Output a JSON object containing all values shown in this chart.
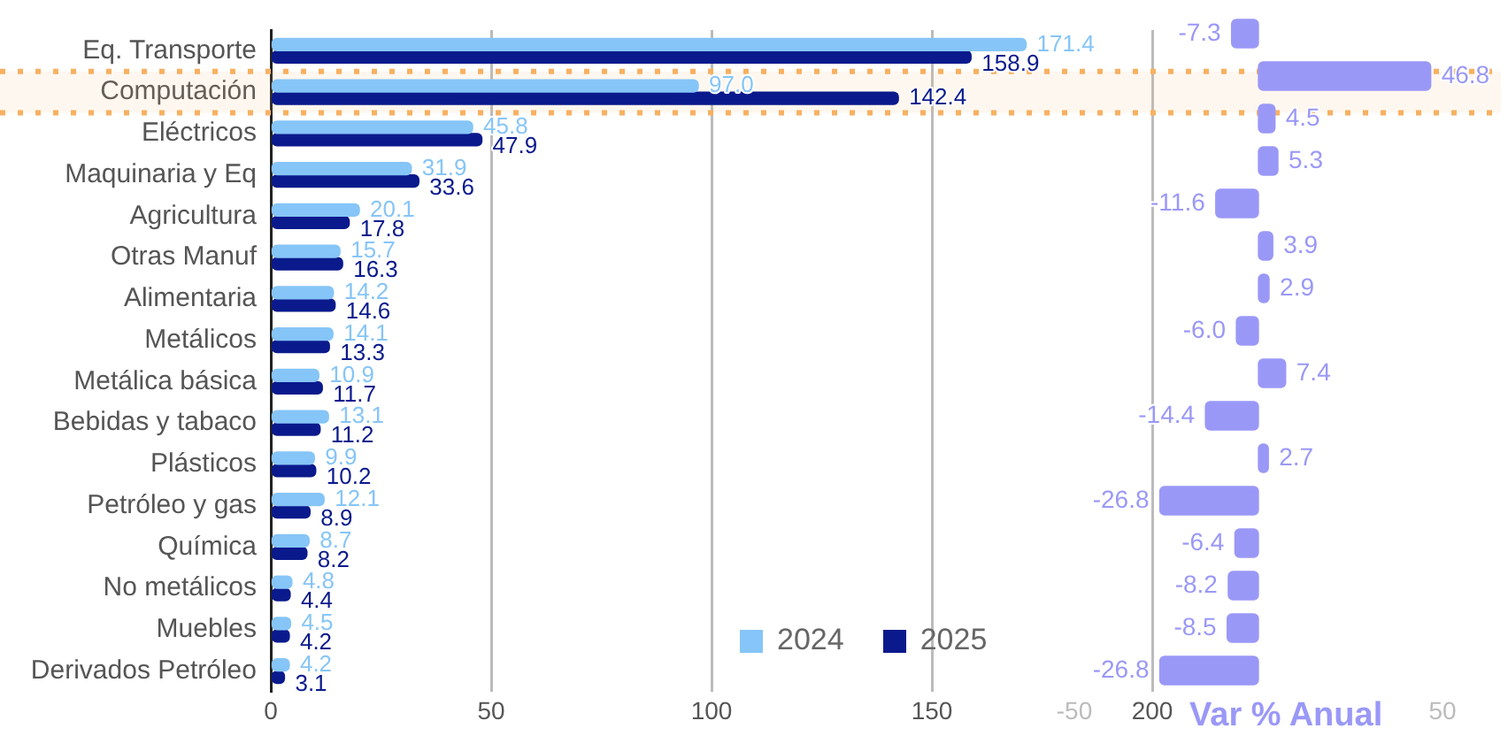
{
  "chart_data": [
    {
      "type": "bar",
      "orientation": "horizontal",
      "categories": [
        "Eq. Transporte",
        "Computación",
        "Eléctricos",
        "Maquinaria y Eq",
        "Agricultura",
        "Otras Manuf",
        "Alimentaria",
        "Metálicos",
        "Metálica básica",
        "Bebidas y tabaco",
        "Plásticos",
        "Petróleo y gas",
        "Química",
        "No metálicos",
        "Muebles",
        "Derivados Petróleo"
      ],
      "series": [
        {
          "name": "2024",
          "color": "#86c5f7",
          "values": [
            171.4,
            97.0,
            45.8,
            31.9,
            20.1,
            15.7,
            14.2,
            14.1,
            10.9,
            13.1,
            9.9,
            12.1,
            8.7,
            4.8,
            4.5,
            4.2
          ],
          "value_labels": [
            "171.4",
            "97.0",
            "45.8",
            "31.9",
            "20.1",
            "15.7",
            "14.2",
            "14.1",
            "10.9",
            "13.1",
            "9.9",
            "12.1",
            "8.7",
            "4.8",
            "4.5",
            "4.2"
          ]
        },
        {
          "name": "2025",
          "color": "#0a1a8c",
          "values": [
            158.9,
            142.4,
            47.9,
            33.6,
            17.8,
            16.3,
            14.6,
            13.3,
            11.7,
            11.2,
            10.2,
            8.9,
            8.2,
            4.4,
            4.2,
            3.1
          ],
          "value_labels": [
            "158.9",
            "142.4",
            "47.9",
            "33.6",
            "17.8",
            "16.3",
            "14.6",
            "13.3",
            "11.7",
            "11.2",
            "10.2",
            "8.9",
            "8.2",
            "4.4",
            "4.2",
            "3.1"
          ]
        }
      ],
      "bands": [
        {
          "axis": "y",
          "from": "Computación",
          "to": "Computación",
          "color": "#f8b060"
        }
      ],
      "xlim": [
        0,
        200
      ],
      "xticks": [
        0,
        50,
        100,
        150,
        200
      ],
      "grid": "x",
      "legend": "bottom right"
    },
    {
      "type": "bar",
      "orientation": "horizontal",
      "xlabel": "Var % Anual",
      "categories": [
        null,
        null,
        null,
        null,
        null,
        null,
        null,
        null,
        null,
        null,
        null,
        null,
        null,
        null,
        null,
        null
      ],
      "series": [
        {
          "color": "#9a98f7",
          "values": [
            -7.3,
            46.8,
            4.5,
            5.3,
            -11.6,
            3.9,
            2.9,
            -6.0,
            7.4,
            -14.4,
            2.7,
            -26.8,
            -6.4,
            -8.2,
            -8.5,
            -26.8
          ],
          "value_labels": [
            "-7.3",
            "46.8",
            "4.5",
            "5.3",
            "-11.6",
            "3.9",
            "2.9",
            "-6.0",
            "7.4",
            "-14.4",
            "2.7",
            "-26.8",
            "-6.4",
            "-8.2",
            "-8.5",
            "-26.8"
          ]
        }
      ],
      "xlim": [
        -50,
        50
      ],
      "xticks": [
        -50,
        50
      ],
      "tick_labels": "x"
    }
  ]
}
